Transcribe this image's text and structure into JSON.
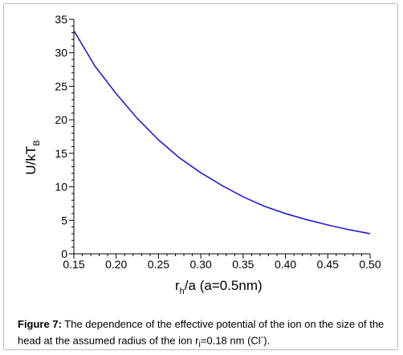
{
  "chart_data": {
    "type": "line",
    "xlabel": {
      "main": "r",
      "sub": "h",
      "rest": "/a  (a=0.5nm)"
    },
    "ylabel": {
      "main": "U/kT",
      "sub": "B"
    },
    "xlim": [
      0.15,
      0.5
    ],
    "ylim": [
      0,
      35
    ],
    "xticks": [
      "0.15",
      "0.20",
      "0.25",
      "0.30",
      "0.35",
      "0.40",
      "0.45",
      "0.50"
    ],
    "yticks": [
      "0",
      "5",
      "10",
      "15",
      "20",
      "25",
      "30",
      "35"
    ],
    "grid": false,
    "line_color": "#1f1fd6",
    "series": [
      {
        "x": [
          0.15,
          0.175,
          0.2,
          0.225,
          0.25,
          0.275,
          0.3,
          0.325,
          0.35,
          0.375,
          0.4,
          0.425,
          0.45,
          0.475,
          0.5
        ],
        "y": [
          33.3,
          28.0,
          23.9,
          20.2,
          17.0,
          14.3,
          12.1,
          10.2,
          8.5,
          7.1,
          6.0,
          5.1,
          4.3,
          3.6,
          3.0
        ]
      }
    ]
  },
  "caption": {
    "label": "Figure 7:",
    "text_1": " The dependence of the effective potential of the ion on the size of the head at the assumed radius of the ion r",
    "sub": "i",
    "text_2": "=0.18 nm (Cl",
    "sup": "-",
    "text_3": ")."
  }
}
